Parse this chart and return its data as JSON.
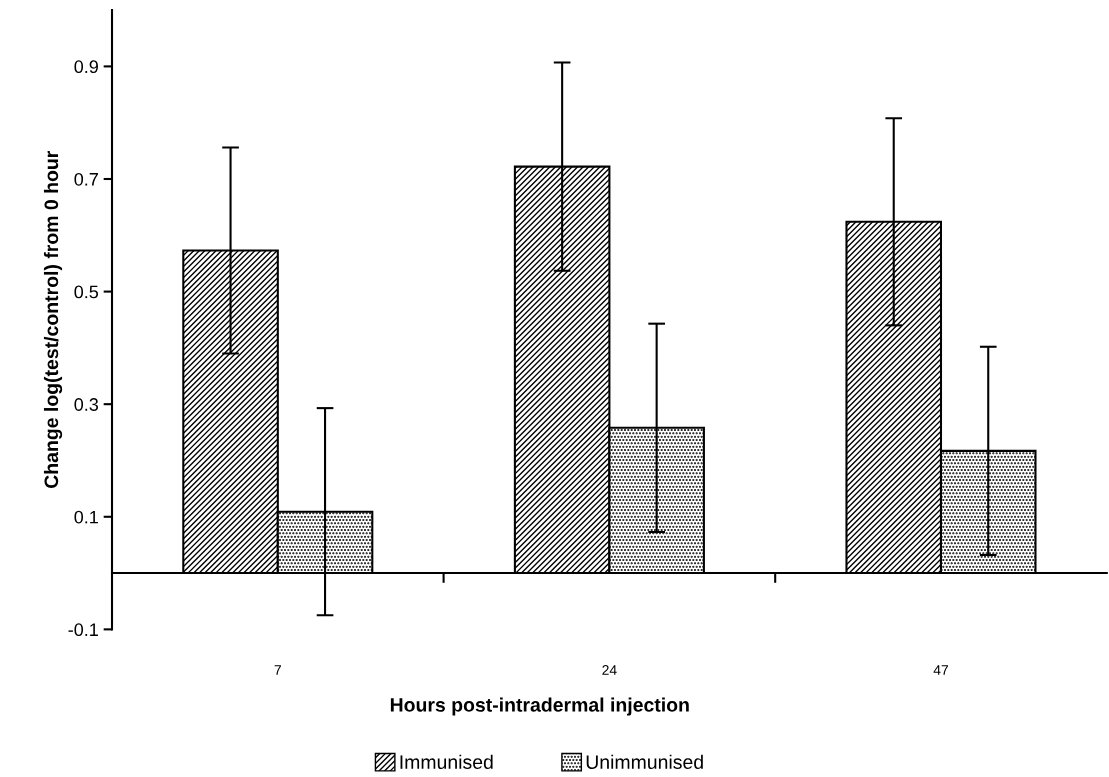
{
  "chart_data": {
    "type": "bar",
    "xlabel": "Hours post-intradermal injection",
    "ylabel": "Change log(test/control) from 0 hour",
    "categories": [
      "7",
      "24",
      "47"
    ],
    "series": [
      {
        "name": "Immunised",
        "color": "#000000",
        "values": [
          0.573,
          0.722,
          0.624
        ],
        "errors": [
          0.183,
          0.185,
          0.184
        ]
      },
      {
        "name": "Unimmunised",
        "color": "#000000",
        "values": [
          0.109,
          0.258,
          0.217
        ],
        "errors": [
          0.184,
          0.185,
          0.185
        ]
      }
    ],
    "ylim": [
      -0.1,
      1.0
    ],
    "yticks": [
      -0.1,
      0.1,
      0.3,
      0.5,
      0.7,
      0.9
    ],
    "grid": false,
    "legend": "bottom"
  }
}
